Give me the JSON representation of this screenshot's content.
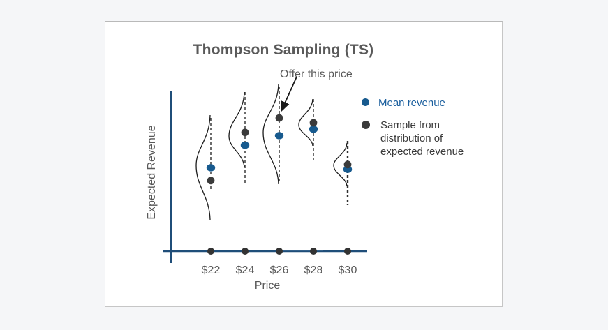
{
  "figure": {
    "title": "Thompson Sampling (TS)",
    "annotation": "Offer this price"
  },
  "axes": {
    "x_label": "Price",
    "y_label": "Expected Revenue",
    "x_ticks": [
      "$22",
      "$24",
      "$26",
      "$28",
      "$30"
    ]
  },
  "legend": {
    "items": [
      {
        "label": "Mean revenue",
        "color": "#175a8e"
      },
      {
        "label": "Sample from distribution of expected revenue",
        "color": "#3b3b3b"
      }
    ]
  },
  "colors": {
    "axis_blue": "#1f4e79",
    "mean_dot_blue": "#175a8e",
    "sample_dot_dark": "#3b3b3b",
    "text_gray": "#595959",
    "legend_blue_text": "#1b5f9e",
    "card_border": "#c6c6c6",
    "page_background": "#f5f6f8"
  },
  "chart_data": {
    "type": "scatter",
    "title": "Thompson Sampling (TS)",
    "xlabel": "Price",
    "ylabel": "Expected Revenue",
    "categories": [
      "$22",
      "$24",
      "$26",
      "$28",
      "$30"
    ],
    "x_values": [
      22,
      24,
      26,
      28,
      30
    ],
    "series": [
      {
        "name": "Mean revenue",
        "color": "#175a8e",
        "values": [
          0.52,
          0.66,
          0.72,
          0.76,
          0.51
        ]
      },
      {
        "name": "Sample from distribution of expected revenue",
        "color": "#3b3b3b",
        "values": [
          0.44,
          0.74,
          0.83,
          0.8,
          0.54
        ]
      }
    ],
    "ylim": [
      0,
      1
    ],
    "grid": false,
    "legend_position": "right",
    "annotation": {
      "text": "Offer this price",
      "target": "sample dot at $26"
    },
    "notes": "Each price shows a Gaussian belief distribution (bell curve) over expected revenue; the sampled value at $26 is highest, so that price is offered. Y values are relative (no numeric y ticks shown)."
  }
}
